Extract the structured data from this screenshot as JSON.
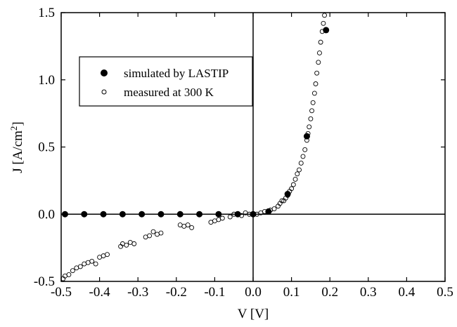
{
  "chart_data": {
    "type": "scatter",
    "xlabel": "V [V]",
    "ylabel_main": "J [A/cm",
    "ylabel_sup": "2",
    "ylabel_end": "]",
    "xlim": [
      -0.5,
      0.5
    ],
    "ylim": [
      -0.5,
      1.5
    ],
    "x_ticks": [
      -0.5,
      -0.4,
      -0.3,
      -0.2,
      -0.1,
      0.0,
      0.1,
      0.2,
      0.3,
      0.4,
      0.5
    ],
    "x_tick_labels": [
      "-0.5",
      "-0.4",
      "-0.3",
      "-0.2",
      "-0.1",
      "0.0",
      "0.1",
      "0.2",
      "0.3",
      "0.4",
      "0.5"
    ],
    "y_ticks": [
      -0.5,
      0.0,
      0.5,
      1.0,
      1.5
    ],
    "y_tick_labels": [
      "-0.5",
      "0.0",
      "0.5",
      "1.0",
      "1.5"
    ],
    "grid": false,
    "reference_lines": {
      "x": 0,
      "y": 0
    },
    "legend_position": "upper-left",
    "series": [
      {
        "name": "simulated by LASTIP",
        "marker": "filled-circle",
        "color": "#000000",
        "points": [
          [
            -0.49,
            0.0
          ],
          [
            -0.44,
            0.0
          ],
          [
            -0.39,
            0.0
          ],
          [
            -0.34,
            0.0
          ],
          [
            -0.29,
            0.0
          ],
          [
            -0.24,
            0.0
          ],
          [
            -0.19,
            0.0
          ],
          [
            -0.14,
            0.0
          ],
          [
            -0.09,
            0.0
          ],
          [
            -0.04,
            0.0
          ],
          [
            0.0,
            0.0
          ],
          [
            0.04,
            0.02
          ],
          [
            0.09,
            0.15
          ],
          [
            0.14,
            0.58
          ],
          [
            0.19,
            1.37
          ]
        ]
      },
      {
        "name": "measured at 300 K",
        "marker": "open-circle",
        "color": "#000000",
        "points": [
          [
            -0.495,
            -0.48
          ],
          [
            -0.49,
            -0.46
          ],
          [
            -0.48,
            -0.45
          ],
          [
            -0.47,
            -0.42
          ],
          [
            -0.46,
            -0.4
          ],
          [
            -0.45,
            -0.39
          ],
          [
            -0.44,
            -0.37
          ],
          [
            -0.43,
            -0.36
          ],
          [
            -0.42,
            -0.35
          ],
          [
            -0.41,
            -0.37
          ],
          [
            -0.4,
            -0.32
          ],
          [
            -0.39,
            -0.31
          ],
          [
            -0.38,
            -0.3
          ],
          [
            -0.345,
            -0.24
          ],
          [
            -0.34,
            -0.22
          ],
          [
            -0.33,
            -0.23
          ],
          [
            -0.32,
            -0.21
          ],
          [
            -0.31,
            -0.22
          ],
          [
            -0.28,
            -0.17
          ],
          [
            -0.27,
            -0.16
          ],
          [
            -0.26,
            -0.13
          ],
          [
            -0.25,
            -0.15
          ],
          [
            -0.24,
            -0.14
          ],
          [
            -0.19,
            -0.08
          ],
          [
            -0.18,
            -0.09
          ],
          [
            -0.17,
            -0.08
          ],
          [
            -0.16,
            -0.1
          ],
          [
            -0.11,
            -0.06
          ],
          [
            -0.1,
            -0.05
          ],
          [
            -0.09,
            -0.04
          ],
          [
            -0.08,
            -0.03
          ],
          [
            -0.06,
            -0.02
          ],
          [
            -0.05,
            0.0
          ],
          [
            -0.03,
            -0.01
          ],
          [
            -0.02,
            0.01
          ],
          [
            -0.01,
            0.0
          ],
          [
            0.0,
            0.0
          ],
          [
            0.01,
            0.0
          ],
          [
            0.02,
            0.01
          ],
          [
            0.03,
            0.02
          ],
          [
            0.045,
            0.03
          ],
          [
            0.055,
            0.04
          ],
          [
            0.065,
            0.06
          ],
          [
            0.07,
            0.08
          ],
          [
            0.075,
            0.1
          ],
          [
            0.08,
            0.1
          ],
          [
            0.085,
            0.12
          ],
          [
            0.09,
            0.14
          ],
          [
            0.095,
            0.17
          ],
          [
            0.1,
            0.19
          ],
          [
            0.105,
            0.22
          ],
          [
            0.11,
            0.26
          ],
          [
            0.115,
            0.3
          ],
          [
            0.12,
            0.33
          ],
          [
            0.125,
            0.38
          ],
          [
            0.13,
            0.43
          ],
          [
            0.135,
            0.48
          ],
          [
            0.14,
            0.55
          ],
          [
            0.143,
            0.6
          ],
          [
            0.146,
            0.65
          ],
          [
            0.15,
            0.71
          ],
          [
            0.153,
            0.77
          ],
          [
            0.156,
            0.83
          ],
          [
            0.16,
            0.9
          ],
          [
            0.163,
            0.97
          ],
          [
            0.166,
            1.05
          ],
          [
            0.17,
            1.13
          ],
          [
            0.173,
            1.2
          ],
          [
            0.176,
            1.28
          ],
          [
            0.18,
            1.36
          ],
          [
            0.183,
            1.42
          ],
          [
            0.186,
            1.48
          ]
        ]
      }
    ]
  }
}
